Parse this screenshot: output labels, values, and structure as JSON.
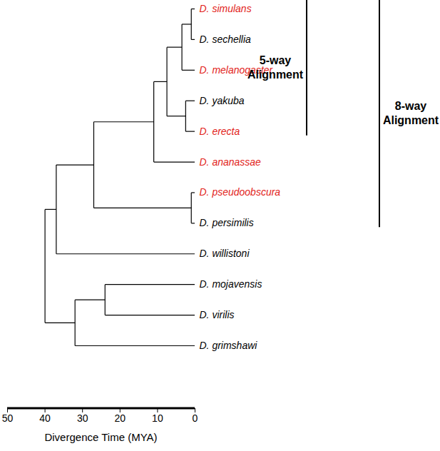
{
  "chart_data": {
    "type": "dendrogram",
    "x_label": "Divergence Time (MYA)",
    "xlim": [
      50,
      0
    ],
    "xticks": [
      50,
      40,
      30,
      20,
      10,
      0
    ],
    "tree": {
      "age": 40,
      "children": [
        {
          "age": 37,
          "children": [
            {
              "age": 27,
              "children": [
                {
                  "age": 11,
                  "children": [
                    {
                      "age": 7.5,
                      "children": [
                        {
                          "age": 3.5,
                          "children": [
                            {
                              "age": 1,
                              "children": [
                                {
                                  "name": "D. simulans",
                                  "age": 0,
                                  "color": "#e2231a"
                                },
                                {
                                  "name": "D. sechellia",
                                  "age": 0,
                                  "color": "#000000"
                                }
                              ]
                            },
                            {
                              "name": "D. melanogaster",
                              "age": 0,
                              "color": "#e2231a"
                            }
                          ]
                        },
                        {
                          "age": 2.5,
                          "children": [
                            {
                              "name": "D. yakuba",
                              "age": 0,
                              "color": "#000000"
                            },
                            {
                              "name": "D. erecta",
                              "age": 0,
                              "color": "#e2231a"
                            }
                          ]
                        }
                      ]
                    },
                    {
                      "name": "D. ananassae",
                      "age": 0,
                      "color": "#e2231a"
                    }
                  ]
                },
                {
                  "age": 1,
                  "children": [
                    {
                      "name": "D. pseudoobscura",
                      "age": 0,
                      "color": "#e2231a"
                    },
                    {
                      "name": "D. persimilis",
                      "age": 0,
                      "color": "#000000"
                    }
                  ]
                }
              ]
            },
            {
              "name": "D. willistoni",
              "age": 0,
              "color": "#000000"
            }
          ]
        },
        {
          "age": 32,
          "children": [
            {
              "age": 24,
              "children": [
                {
                  "name": "D. mojavensis",
                  "age": 0,
                  "color": "#000000"
                },
                {
                  "name": "D. virilis",
                  "age": 0,
                  "color": "#000000"
                }
              ]
            },
            {
              "name": "D. grimshawi",
              "age": 0,
              "color": "#000000"
            }
          ]
        }
      ]
    },
    "annotations": [
      {
        "text": [
          "5-way",
          "Alignment"
        ],
        "from": "D. simulans",
        "to": "D. erecta"
      },
      {
        "text": [
          "8-way",
          "Alignment"
        ],
        "from": "D. simulans",
        "to": "D. persimilis"
      }
    ]
  }
}
